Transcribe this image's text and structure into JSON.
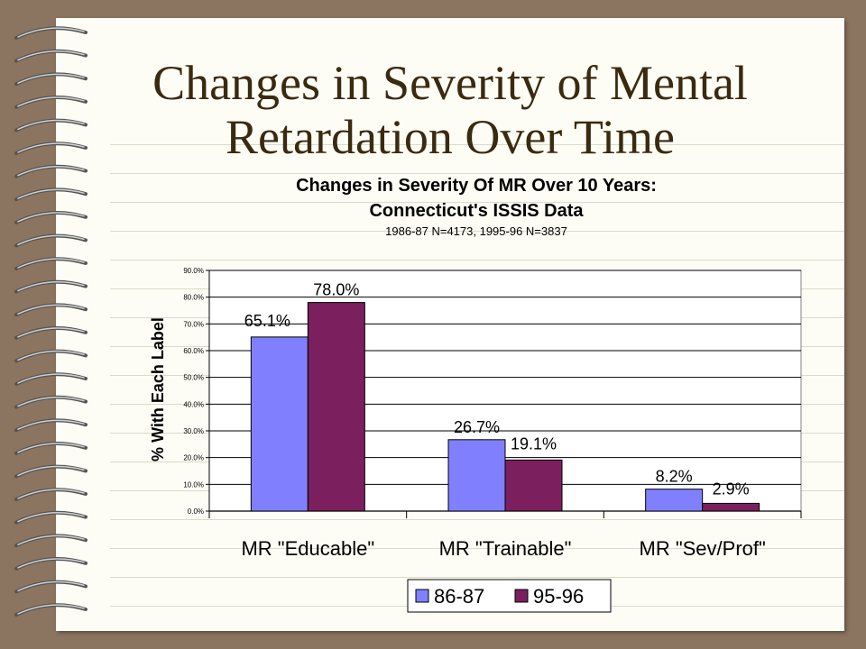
{
  "slide": {
    "title_line1": "Changes in Severity of Mental",
    "title_line2": "Retardation Over Time"
  },
  "colors": {
    "background": "#8b7560",
    "paper": "#fdfdf6",
    "title_text": "#3a2a10",
    "series_86_87": "#8080ff",
    "series_95_96": "#7b1f5e"
  },
  "chart_data": {
    "type": "bar",
    "title": "Changes in Severity Of MR Over 10 Years:",
    "subtitle": "Connecticut's ISSIS Data",
    "note": "1986-87 N=4173, 1995-96 N=3837",
    "ylabel": "% With Each Label",
    "xlabel": "",
    "ylim": [
      0,
      90
    ],
    "yticks": [
      "0.0%",
      "10.0%",
      "20.0%",
      "30.0%",
      "40.0%",
      "50.0%",
      "60.0%",
      "70.0%",
      "80.0%",
      "90.0%"
    ],
    "categories": [
      "MR \"Educable\"",
      "MR \"Trainable\"",
      "MR \"Sev/Prof\""
    ],
    "series": [
      {
        "name": "86-87",
        "color": "#8080ff",
        "values": [
          65.1,
          26.7,
          8.2
        ],
        "labels": [
          "65.1%",
          "26.7%",
          "8.2%"
        ]
      },
      {
        "name": "95-96",
        "color": "#7b1f5e",
        "values": [
          78.0,
          19.1,
          2.9
        ],
        "labels": [
          "78.0%",
          "19.1%",
          "2.9%"
        ]
      }
    ],
    "grid": true,
    "legend": "bottom"
  }
}
